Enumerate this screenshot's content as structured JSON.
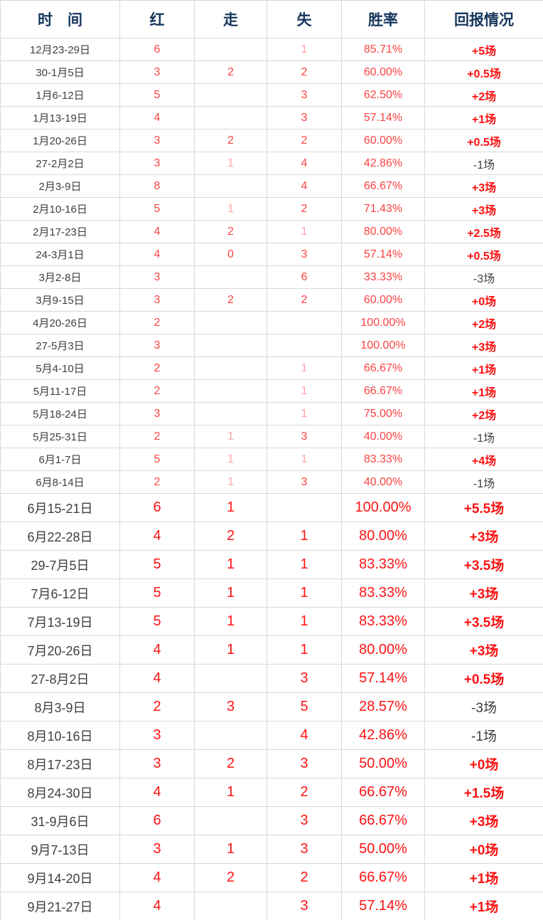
{
  "colors": {
    "background": "#ffffff",
    "border": "#d9d9d9",
    "header_text": "#17375d",
    "body_text": "#3f3f3f",
    "value_red_small": "#fc4343",
    "value_red_large": "#fe1414",
    "value_pale_red": "#ffa2a2",
    "return_positive": "#fe1111",
    "return_negative": "#3f3f3f"
  },
  "chart_data": {
    "type": "table",
    "columns": [
      "时　间",
      "红",
      "走",
      "失",
      "胜率",
      "回报情况"
    ],
    "column_keys": [
      "time",
      "red",
      "walk",
      "lose",
      "rate",
      "return"
    ],
    "rows": [
      {
        "time": "12月23-29日",
        "red": "6",
        "walk": "",
        "lose": "1",
        "rate": "85.71%",
        "return": "+5场",
        "size": "small",
        "pale": [
          "lose"
        ]
      },
      {
        "time": "30-1月5日",
        "red": "3",
        "walk": "2",
        "lose": "2",
        "rate": "60.00%",
        "return": "+0.5场",
        "size": "small",
        "pale": []
      },
      {
        "time": "1月6-12日",
        "red": "5",
        "walk": "",
        "lose": "3",
        "rate": "62.50%",
        "return": "+2场",
        "size": "small",
        "pale": []
      },
      {
        "time": "1月13-19日",
        "red": "4",
        "walk": "",
        "lose": "3",
        "rate": "57.14%",
        "return": "+1场",
        "size": "small",
        "pale": []
      },
      {
        "time": "1月20-26日",
        "red": "3",
        "walk": "2",
        "lose": "2",
        "rate": "60.00%",
        "return": "+0.5场",
        "size": "small",
        "pale": []
      },
      {
        "time": "27-2月2日",
        "red": "3",
        "walk": "1",
        "lose": "4",
        "rate": "42.86%",
        "return": "-1场",
        "size": "small",
        "pale": [
          "walk"
        ]
      },
      {
        "time": "2月3-9日",
        "red": "8",
        "walk": "",
        "lose": "4",
        "rate": "66.67%",
        "return": "+3场",
        "size": "small",
        "pale": []
      },
      {
        "time": "2月10-16日",
        "red": "5",
        "walk": "1",
        "lose": "2",
        "rate": "71.43%",
        "return": "+3场",
        "size": "small",
        "pale": [
          "walk"
        ]
      },
      {
        "time": "2月17-23日",
        "red": "4",
        "walk": "2",
        "lose": "1",
        "rate": "80.00%",
        "return": "+2.5场",
        "size": "small",
        "pale": [
          "lose"
        ]
      },
      {
        "time": "24-3月1日",
        "red": "4",
        "walk": "0",
        "lose": "3",
        "rate": "57.14%",
        "return": "+0.5场",
        "size": "small",
        "pale": []
      },
      {
        "time": "3月2-8日",
        "red": "3",
        "walk": "",
        "lose": "6",
        "rate": "33.33%",
        "return": "-3场",
        "size": "small",
        "pale": []
      },
      {
        "time": "3月9-15日",
        "red": "3",
        "walk": "2",
        "lose": "2",
        "rate": "60.00%",
        "return": "+0场",
        "size": "small",
        "pale": []
      },
      {
        "time": "4月20-26日",
        "red": "2",
        "walk": "",
        "lose": "",
        "rate": "100.00%",
        "return": "+2场",
        "size": "small",
        "pale": []
      },
      {
        "time": "27-5月3日",
        "red": "3",
        "walk": "",
        "lose": "",
        "rate": "100.00%",
        "return": "+3场",
        "size": "small",
        "pale": []
      },
      {
        "time": "5月4-10日",
        "red": "2",
        "walk": "",
        "lose": "1",
        "rate": "66.67%",
        "return": "+1场",
        "size": "small",
        "pale": [
          "lose"
        ]
      },
      {
        "time": "5月11-17日",
        "red": "2",
        "walk": "",
        "lose": "1",
        "rate": "66.67%",
        "return": "+1场",
        "size": "small",
        "pale": [
          "lose"
        ]
      },
      {
        "time": "5月18-24日",
        "red": "3",
        "walk": "",
        "lose": "1",
        "rate": "75.00%",
        "return": "+2场",
        "size": "small",
        "pale": [
          "lose"
        ]
      },
      {
        "time": "5月25-31日",
        "red": "2",
        "walk": "1",
        "lose": "3",
        "rate": "40.00%",
        "return": "-1场",
        "size": "small",
        "pale": [
          "walk"
        ]
      },
      {
        "time": "6月1-7日",
        "red": "5",
        "walk": "1",
        "lose": "1",
        "rate": "83.33%",
        "return": "+4场",
        "size": "small",
        "pale": [
          "walk",
          "lose"
        ]
      },
      {
        "time": "6月8-14日",
        "red": "2",
        "walk": "1",
        "lose": "3",
        "rate": "40.00%",
        "return": "-1场",
        "size": "small",
        "pale": [
          "walk"
        ]
      },
      {
        "time": "6月15-21日",
        "red": "6",
        "walk": "1",
        "lose": "",
        "rate": "100.00%",
        "return": "+5.5场",
        "size": "large",
        "pale": []
      },
      {
        "time": "6月22-28日",
        "red": "4",
        "walk": "2",
        "lose": "1",
        "rate": "80.00%",
        "return": "+3场",
        "size": "large",
        "pale": []
      },
      {
        "time": "29-7月5日",
        "red": "5",
        "walk": "1",
        "lose": "1",
        "rate": "83.33%",
        "return": "+3.5场",
        "size": "large",
        "pale": []
      },
      {
        "time": "7月6-12日",
        "red": "5",
        "walk": "1",
        "lose": "1",
        "rate": "83.33%",
        "return": "+3场",
        "size": "large",
        "pale": []
      },
      {
        "time": "7月13-19日",
        "red": "5",
        "walk": "1",
        "lose": "1",
        "rate": "83.33%",
        "return": "+3.5场",
        "size": "large",
        "pale": []
      },
      {
        "time": "7月20-26日",
        "red": "4",
        "walk": "1",
        "lose": "1",
        "rate": "80.00%",
        "return": "+3场",
        "size": "large",
        "pale": []
      },
      {
        "time": "27-8月2日",
        "red": "4",
        "walk": "",
        "lose": "3",
        "rate": "57.14%",
        "return": "+0.5场",
        "size": "large",
        "pale": []
      },
      {
        "time": "8月3-9日",
        "red": "2",
        "walk": "3",
        "lose": "5",
        "rate": "28.57%",
        "return": "-3场",
        "size": "large",
        "pale": []
      },
      {
        "time": "8月10-16日",
        "red": "3",
        "walk": "",
        "lose": "4",
        "rate": "42.86%",
        "return": "-1场",
        "size": "large",
        "pale": []
      },
      {
        "time": "8月17-23日",
        "red": "3",
        "walk": "2",
        "lose": "3",
        "rate": "50.00%",
        "return": "+0场",
        "size": "large",
        "pale": []
      },
      {
        "time": "8月24-30日",
        "red": "4",
        "walk": "1",
        "lose": "2",
        "rate": "66.67%",
        "return": "+1.5场",
        "size": "large",
        "pale": []
      },
      {
        "time": "31-9月6日",
        "red": "6",
        "walk": "",
        "lose": "3",
        "rate": "66.67%",
        "return": "+3场",
        "size": "large",
        "pale": []
      },
      {
        "time": "9月7-13日",
        "red": "3",
        "walk": "1",
        "lose": "3",
        "rate": "50.00%",
        "return": "+0场",
        "size": "large",
        "pale": []
      },
      {
        "time": "9月14-20日",
        "red": "4",
        "walk": "2",
        "lose": "2",
        "rate": "66.67%",
        "return": "+1场",
        "size": "large",
        "pale": []
      },
      {
        "time": "9月21-27日",
        "red": "4",
        "walk": "",
        "lose": "3",
        "rate": "57.14%",
        "return": "+1场",
        "size": "large",
        "pale": []
      }
    ]
  }
}
